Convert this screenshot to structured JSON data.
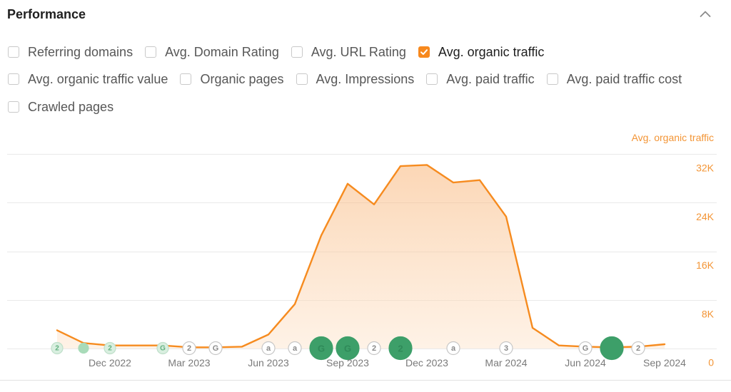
{
  "panel": {
    "title": "Performance",
    "collapse_icon": "chevron-up-icon"
  },
  "filters": {
    "checkmark_icon": "checkmark-icon",
    "items": [
      {
        "label": "Referring domains",
        "checked": false
      },
      {
        "label": "Avg. Domain Rating",
        "checked": false
      },
      {
        "label": "Avg. URL Rating",
        "checked": false
      },
      {
        "label": "Avg. organic traffic",
        "checked": true
      },
      {
        "label": "Avg. organic traffic value",
        "checked": false
      },
      {
        "label": "Organic pages",
        "checked": false
      },
      {
        "label": "Avg. Impressions",
        "checked": false
      },
      {
        "label": "Avg. paid traffic",
        "checked": false
      },
      {
        "label": "Avg. paid traffic cost",
        "checked": false
      },
      {
        "label": "Crawled pages",
        "checked": false
      }
    ]
  },
  "colors": {
    "accent": "#f7891e",
    "y_tick_label": "#f39536",
    "x_tick_label": "#7a7a7a",
    "gridline": "#e9e9e9",
    "marker_green": "#3d9f69",
    "marker_green_text": "#2f8a59",
    "marker_muted_fill": "#d9efe0",
    "marker_muted_stroke": "#bfdfc9",
    "marker_muted_text": "#62b07f",
    "marker_dot": "#a9dbb9",
    "marker_outline_stroke": "#c6c6c6",
    "marker_outline_text": "#8a8a8a"
  },
  "chart_data": {
    "type": "area",
    "legend": "top-right",
    "grid": true,
    "y_axis_side": "right",
    "ylim": [
      0,
      32000
    ],
    "series": [
      {
        "name": "Avg. organic traffic",
        "color": "#f68b1f",
        "x": [
          "Oct 2022",
          "Nov 2022",
          "Dec 2022",
          "Jan 2023",
          "Feb 2023",
          "Mar 2023",
          "Apr 2023",
          "May 2023",
          "Jun 2023",
          "Jul 2023",
          "Aug 2023",
          "Sep 2023",
          "Oct 2023",
          "Nov 2023",
          "Dec 2023",
          "Jan 2024",
          "Feb 2024",
          "Mar 2024",
          "Apr 2024",
          "May 2024",
          "Jun 2024",
          "Jul 2024",
          "Aug 2024",
          "Sep 2024"
        ],
        "values": [
          3000,
          900,
          500,
          500,
          500,
          200,
          200,
          300,
          2300,
          7300,
          18600,
          27100,
          23700,
          30000,
          30200,
          27300,
          27700,
          21700,
          3400,
          500,
          300,
          200,
          300,
          700
        ]
      }
    ],
    "x_ticks": [
      "Dec 2022",
      "Mar 2023",
      "Jun 2023",
      "Sep 2023",
      "Dec 2023",
      "Mar 2024",
      "Jun 2024",
      "Sep 2024"
    ],
    "y_ticks": [
      {
        "value": 0,
        "label": "0"
      },
      {
        "value": 8000,
        "label": "8K"
      },
      {
        "value": 16000,
        "label": "16K"
      },
      {
        "value": 24000,
        "label": "24K"
      },
      {
        "value": 32000,
        "label": "32K"
      }
    ],
    "annotations": [
      {
        "x": "Oct 2022",
        "label": "2",
        "style": "muted"
      },
      {
        "x": "Nov 2022",
        "label": "",
        "style": "dot"
      },
      {
        "x": "Dec 2022",
        "label": "2",
        "style": "muted"
      },
      {
        "x": "Feb 2023",
        "label": "G",
        "style": "muted"
      },
      {
        "x": "Mar 2023",
        "label": "2",
        "style": "default"
      },
      {
        "x": "Apr 2023",
        "label": "G",
        "style": "default"
      },
      {
        "x": "Jun 2023",
        "label": "a",
        "style": "default"
      },
      {
        "x": "Jul 2023",
        "label": "a",
        "style": "default"
      },
      {
        "x": "Aug 2023",
        "label": "G",
        "style": "large"
      },
      {
        "x": "Sep 2023",
        "label": "G",
        "style": "large"
      },
      {
        "x": "Oct 2023",
        "label": "2",
        "style": "default"
      },
      {
        "x": "Nov 2023",
        "label": "2",
        "style": "large"
      },
      {
        "x": "Jan 2024",
        "label": "a",
        "style": "default"
      },
      {
        "x": "Mar 2024",
        "label": "3",
        "style": "default"
      },
      {
        "x": "Jun 2024",
        "label": "G",
        "style": "default"
      },
      {
        "x": "Jul 2024",
        "label": "",
        "style": "large"
      },
      {
        "x": "Aug 2024",
        "label": "2",
        "style": "default"
      }
    ]
  }
}
